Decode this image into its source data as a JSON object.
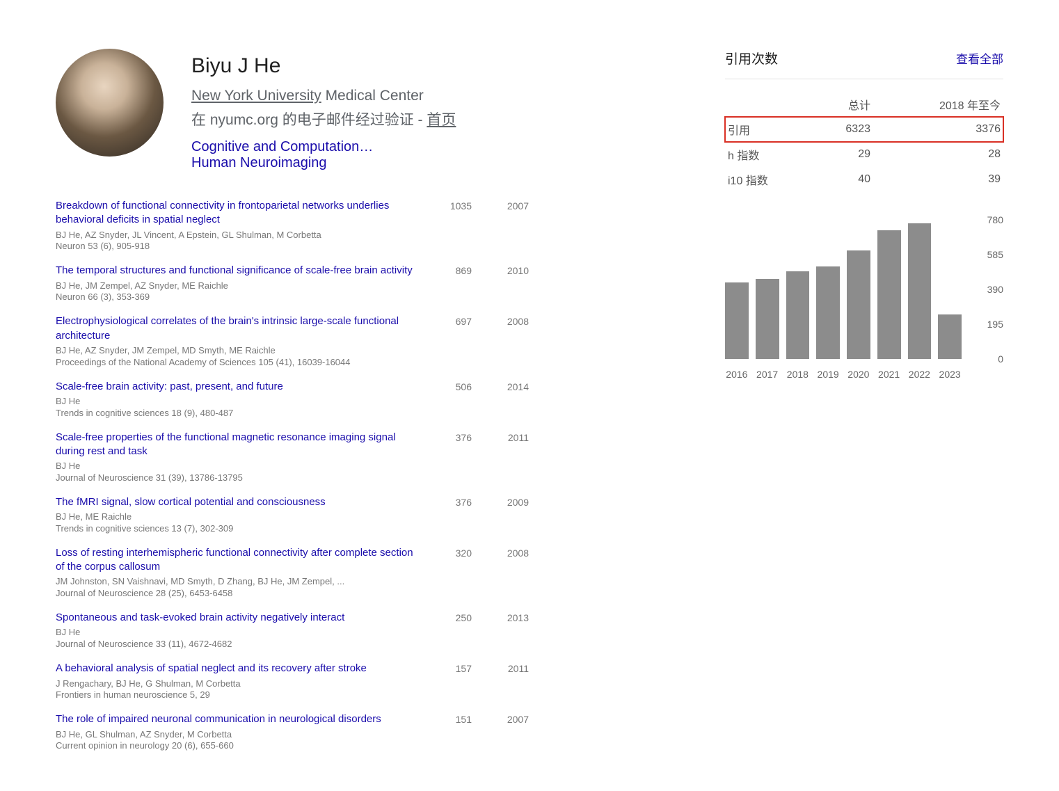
{
  "profile": {
    "name": "Biyu J He",
    "affiliation_underlined": "New York University",
    "affiliation_rest": " Medical Center",
    "email_line_prefix": "在 nyumc.org 的电子邮件经过验证 - ",
    "email_homepage": "首页",
    "interest1": "Cognitive and Computation…",
    "interest2": "Human Neuroimaging"
  },
  "publications": [
    {
      "title": "Breakdown of functional connectivity in frontoparietal networks underlies behavioral deficits in spatial neglect",
      "authors": "BJ He, AZ Snyder, JL Vincent, A Epstein, GL Shulman, M Corbetta",
      "venue": "Neuron 53 (6), 905-918",
      "cites": "1035",
      "year": "2007"
    },
    {
      "title": "The temporal structures and functional significance of scale-free brain activity",
      "authors": "BJ He, JM Zempel, AZ Snyder, ME Raichle",
      "venue": "Neuron 66 (3), 353-369",
      "cites": "869",
      "year": "2010"
    },
    {
      "title": "Electrophysiological correlates of the brain's intrinsic large-scale functional architecture",
      "authors": "BJ He, AZ Snyder, JM Zempel, MD Smyth, ME Raichle",
      "venue": "Proceedings of the National Academy of Sciences 105 (41), 16039-16044",
      "cites": "697",
      "year": "2008"
    },
    {
      "title": "Scale-free brain activity: past, present, and future",
      "authors": "BJ He",
      "venue": "Trends in cognitive sciences 18 (9), 480-487",
      "cites": "506",
      "year": "2014"
    },
    {
      "title": "Scale-free properties of the functional magnetic resonance imaging signal during rest and task",
      "authors": "BJ He",
      "venue": "Journal of Neuroscience 31 (39), 13786-13795",
      "cites": "376",
      "year": "2011"
    },
    {
      "title": "The fMRI signal, slow cortical potential and consciousness",
      "authors": "BJ He, ME Raichle",
      "venue": "Trends in cognitive sciences 13 (7), 302-309",
      "cites": "376",
      "year": "2009"
    },
    {
      "title": "Loss of resting interhemispheric functional connectivity after complete section of the corpus callosum",
      "authors": "JM Johnston, SN Vaishnavi, MD Smyth, D Zhang, BJ He, JM Zempel, ...",
      "venue": "Journal of Neuroscience 28 (25), 6453-6458",
      "cites": "320",
      "year": "2008"
    },
    {
      "title": "Spontaneous and task-evoked brain activity negatively interact",
      "authors": "BJ He",
      "venue": "Journal of Neuroscience 33 (11), 4672-4682",
      "cites": "250",
      "year": "2013"
    },
    {
      "title": "A behavioral analysis of spatial neglect and its recovery after stroke",
      "authors": "J Rengachary, BJ He, G Shulman, M Corbetta",
      "venue": "Frontiers in human neuroscience 5, 29",
      "cites": "157",
      "year": "2011"
    },
    {
      "title": "The role of impaired neuronal communication in neurological disorders",
      "authors": "BJ He, GL Shulman, AZ Snyder, M Corbetta",
      "venue": "Current opinion in neurology 20 (6), 655-660",
      "cites": "151",
      "year": "2007"
    }
  ],
  "citePanel": {
    "header_title": "引用次数",
    "header_link": "查看全部",
    "col_total": "总计",
    "col_since": "2018 年至今",
    "rows": [
      {
        "label": "引用",
        "total": "6323",
        "since": "3376",
        "highlight": true
      },
      {
        "label": "h 指数",
        "total": "29",
        "since": "28",
        "highlight": false
      },
      {
        "label": "i10 指数",
        "total": "40",
        "since": "39",
        "highlight": false
      }
    ]
  },
  "chart": {
    "type": "bar",
    "years": [
      "2016",
      "2017",
      "2018",
      "2019",
      "2020",
      "2021",
      "2022",
      "2023"
    ],
    "values": [
      430,
      450,
      490,
      520,
      610,
      720,
      760,
      250
    ],
    "ymax": 780,
    "yticks": [
      780,
      585,
      390,
      195,
      0
    ],
    "bar_color": "#8c8c8c",
    "text_color": "#666666",
    "background": "#ffffff"
  }
}
